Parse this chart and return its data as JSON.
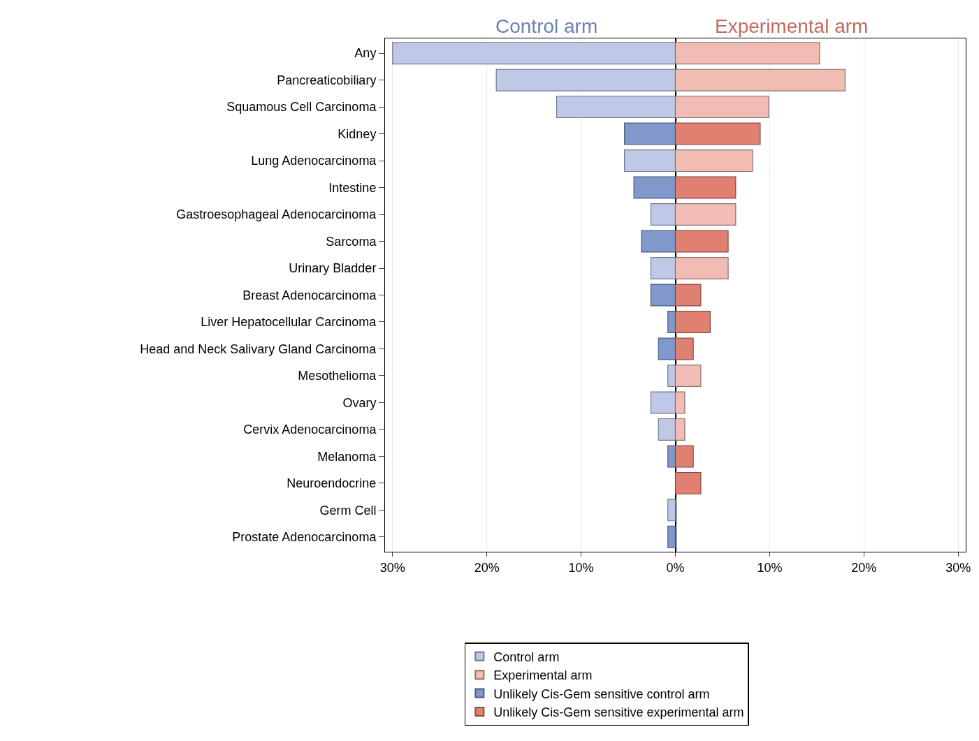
{
  "chart_data": {
    "type": "bar",
    "orientation": "horizontal",
    "categories": [
      "Any",
      "Pancreaticobiliary",
      "Squamous Cell Carcinoma",
      "Kidney",
      "Lung Adenocarcinoma",
      "Intestine",
      "Gastroesophageal Adenocarcinoma",
      "Sarcoma",
      "Urinary Bladder",
      "Breast Adenocarcinoma",
      "Liver Hepatocellular Carcinoma",
      "Head and Neck Salivary Gland Carcinoma",
      "Mesothelioma",
      "Ovary",
      "Cervix Adenocarcinoma",
      "Melanoma",
      "Neuroendocrine",
      "Germ Cell",
      "Prostate Adenocarcinoma"
    ],
    "series": [
      {
        "name": "Control arm",
        "color": "#c0c8e8",
        "values": [
          -30,
          -19.0,
          -12.6,
          null,
          -5.4,
          null,
          -2.6,
          null,
          -2.6,
          null,
          null,
          null,
          -0.8,
          -2.6,
          -1.8,
          null,
          null,
          -0.8,
          null
        ]
      },
      {
        "name": "Experimental arm",
        "color": "#f0bcb4",
        "values": [
          15.3,
          18.0,
          9.9,
          null,
          8.2,
          null,
          6.4,
          null,
          5.6,
          null,
          null,
          null,
          2.7,
          1.0,
          1.0,
          null,
          null,
          null,
          null
        ]
      },
      {
        "name": "Unlikely Cis-Gem sensitive control arm",
        "color": "#8098cc",
        "values": [
          null,
          null,
          null,
          -5.4,
          null,
          -4.4,
          null,
          -3.6,
          null,
          -2.6,
          -0.8,
          -1.8,
          null,
          null,
          null,
          -0.8,
          null,
          null,
          -0.8
        ]
      },
      {
        "name": "Unlikely Cis-Gem sensitive experimental arm",
        "color": "#e08070",
        "values": [
          null,
          null,
          null,
          9.0,
          null,
          6.4,
          null,
          5.6,
          null,
          2.7,
          3.7,
          1.9,
          null,
          null,
          null,
          1.9,
          2.7,
          null,
          null
        ]
      }
    ],
    "annotations": [
      "Control arm",
      "Experimental arm"
    ],
    "xlim": [
      -30.8,
      30.8
    ],
    "xticks": [
      {
        "value": -30,
        "label": "30%"
      },
      {
        "value": -20,
        "label": "20%"
      },
      {
        "value": -10,
        "label": "10%"
      },
      {
        "value": 0,
        "label": "0%"
      },
      {
        "value": 10,
        "label": "10%"
      },
      {
        "value": 20,
        "label": "20%"
      },
      {
        "value": 30,
        "label": "30%"
      }
    ],
    "grid": "x",
    "legend": "bottom",
    "stacked": true
  }
}
